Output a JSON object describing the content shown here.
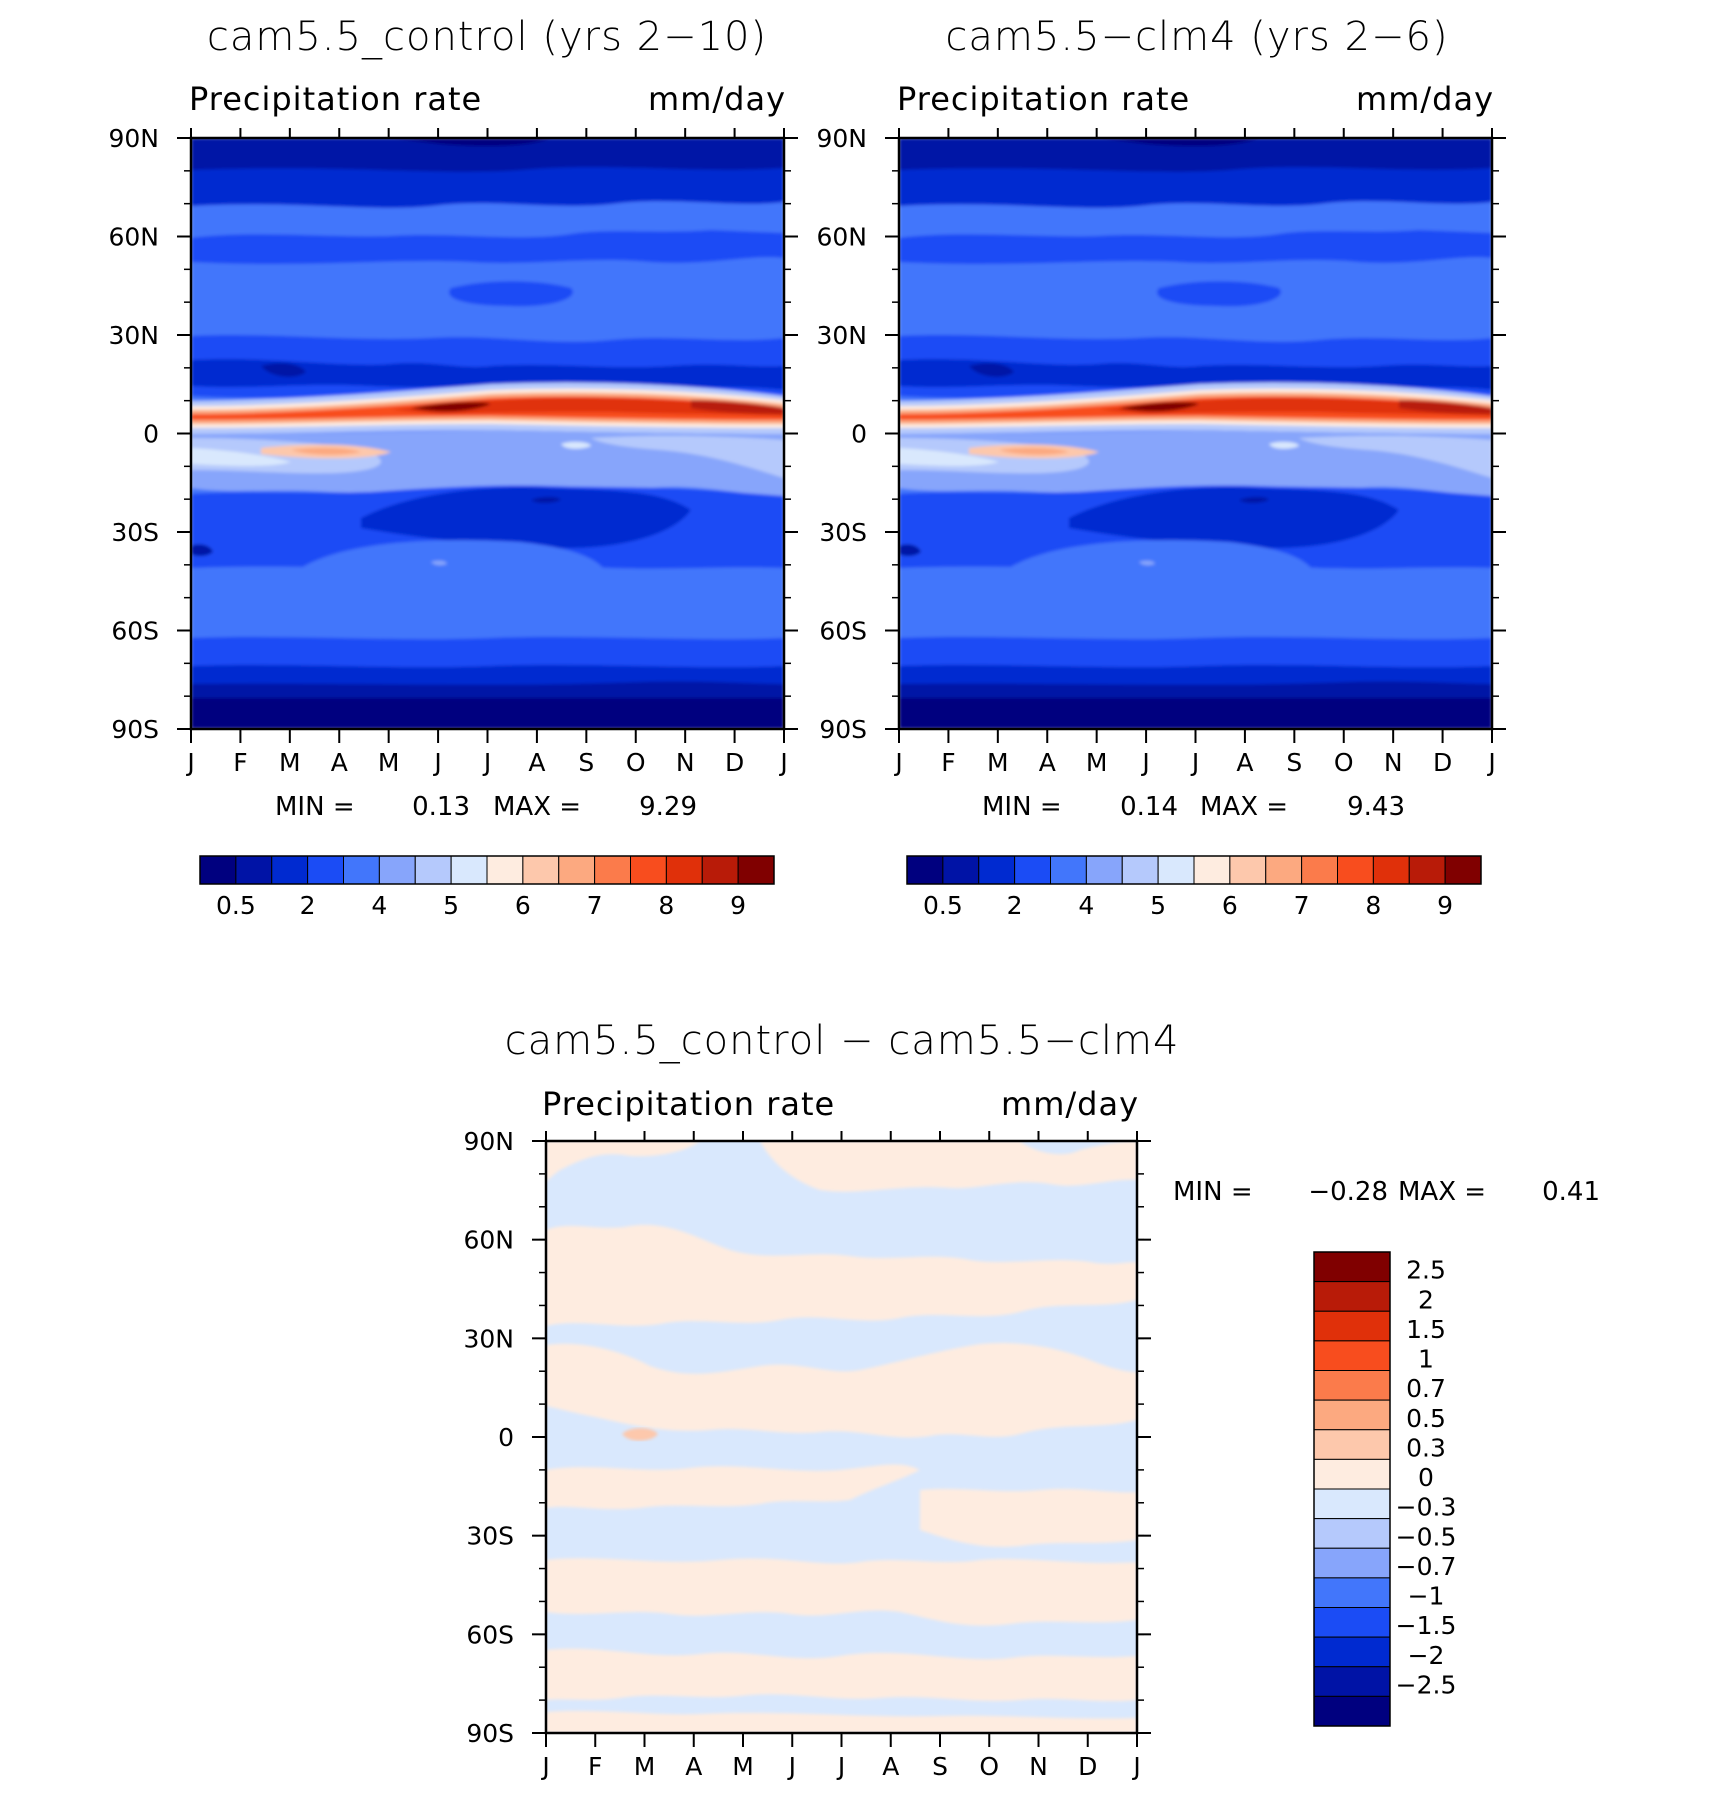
{
  "chart_data": [
    {
      "type": "heatmap",
      "title": "cam5.5_control (yrs 2−10)",
      "left_subtitle": "Precipitation rate",
      "right_subtitle": "mm/day",
      "x_tick_labels": [
        "J",
        "F",
        "M",
        "A",
        "M",
        "J",
        "J",
        "A",
        "S",
        "O",
        "N",
        "D",
        "J"
      ],
      "y_tick_labels": [
        "90N",
        "60N",
        "30N",
        "0",
        "30S",
        "60S",
        "90S"
      ],
      "ylim": [
        -90,
        90
      ],
      "stats": {
        "min_label": "MIN =",
        "min": "0.13",
        "max_label": "MAX =",
        "max": "9.29"
      },
      "colorbar": {
        "orientation": "horizontal",
        "labels": [
          "0.5",
          "2",
          "4",
          "5",
          "6",
          "7",
          "8",
          "9"
        ]
      },
      "features": [
        {
          "description": "ITCZ maximum precipitation band",
          "lat_range": [
            2,
            12
          ],
          "peak": 9.29
        },
        {
          "description": "secondary southern tropical band",
          "lat_range": [
            -5,
            -10
          ],
          "value": 6.5
        },
        {
          "description": "polar minima",
          "lat_range": [
            -90,
            -75
          ],
          "value": 0.13
        }
      ]
    },
    {
      "type": "heatmap",
      "title": "cam5.5−clm4 (yrs 2−6)",
      "left_subtitle": "Precipitation rate",
      "right_subtitle": "mm/day",
      "x_tick_labels": [
        "J",
        "F",
        "M",
        "A",
        "M",
        "J",
        "J",
        "A",
        "S",
        "O",
        "N",
        "D",
        "J"
      ],
      "y_tick_labels": [
        "90N",
        "60N",
        "30N",
        "0",
        "30S",
        "60S",
        "90S"
      ],
      "ylim": [
        -90,
        90
      ],
      "stats": {
        "min_label": "MIN =",
        "min": "0.14",
        "max_label": "MAX =",
        "max": "9.43"
      },
      "colorbar": {
        "orientation": "horizontal",
        "labels": [
          "0.5",
          "2",
          "4",
          "5",
          "6",
          "7",
          "8",
          "9"
        ]
      }
    },
    {
      "type": "heatmap",
      "title": "cam5.5_control − cam5.5−clm4",
      "left_subtitle": "Precipitation rate",
      "right_subtitle": "mm/day",
      "x_tick_labels": [
        "J",
        "F",
        "M",
        "A",
        "M",
        "J",
        "J",
        "A",
        "S",
        "O",
        "N",
        "D",
        "J"
      ],
      "y_tick_labels": [
        "90N",
        "60N",
        "30N",
        "0",
        "30S",
        "60S",
        "90S"
      ],
      "ylim": [
        -90,
        90
      ],
      "stats": {
        "min_label": "MIN =",
        "min": "−0.28",
        "max_label": "MAX =",
        "max": "0.41"
      },
      "colorbar": {
        "orientation": "vertical",
        "labels": [
          "2.5",
          "2",
          "1.5",
          "1",
          "0.7",
          "0.5",
          "0.3",
          "0",
          "−0.3",
          "−0.5",
          "−0.7",
          "−1",
          "−1.5",
          "−2",
          "−2.5"
        ]
      }
    }
  ],
  "colors": {
    "abs_scale": [
      "#00007f",
      "#0013a6",
      "#002ad0",
      "#1b4cf5",
      "#4276fb",
      "#87a5fb",
      "#b5c9fc",
      "#d9e8fd",
      "#feece0",
      "#fdc8ac",
      "#fca980",
      "#fb7b4b",
      "#f84d1e",
      "#e0300a",
      "#b81b08",
      "#800000"
    ],
    "diff_scale": [
      "#800000",
      "#b81b08",
      "#e0300a",
      "#f84d1e",
      "#fb7b4b",
      "#fca980",
      "#fdc8ac",
      "#feece0",
      "#d9e8fd",
      "#b5c9fc",
      "#87a5fb",
      "#4276fb",
      "#1b4cf5",
      "#002ad0",
      "#0013a6",
      "#00007f"
    ]
  }
}
